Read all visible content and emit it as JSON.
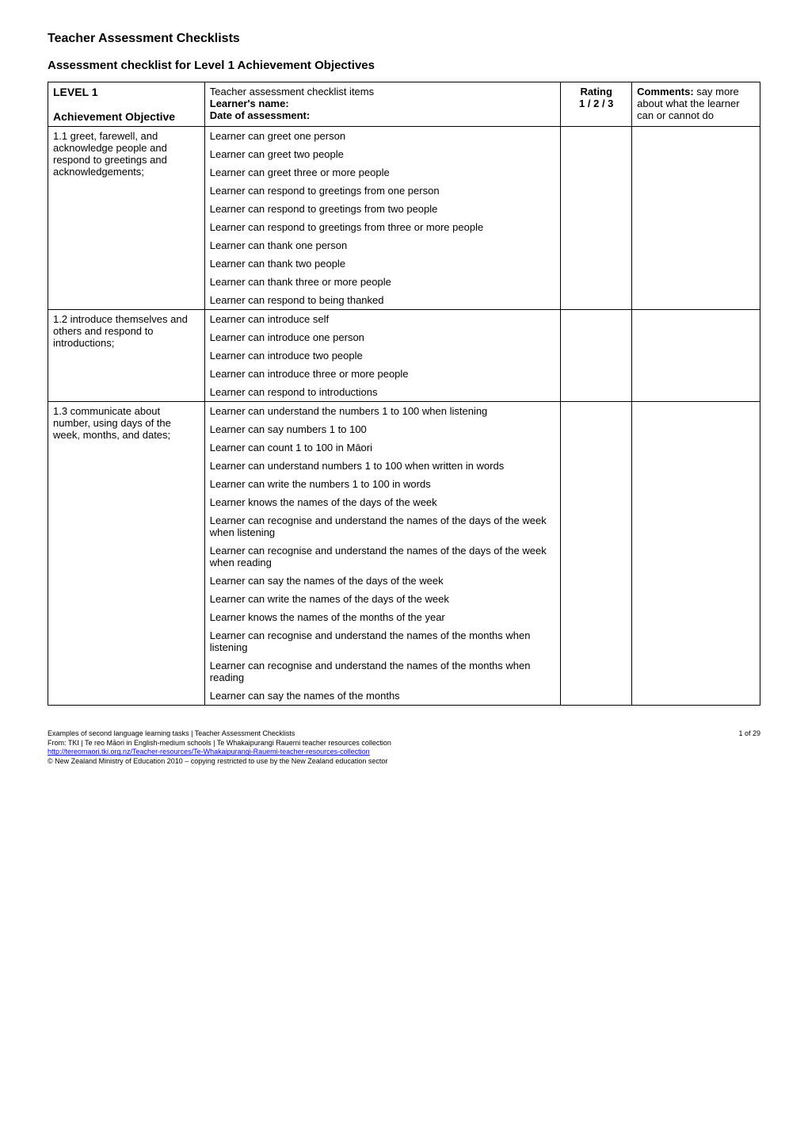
{
  "page_title": "Teacher Assessment Checklists",
  "subtitle": "Assessment checklist for Level 1 Achievement Objectives",
  "header": {
    "level_label": "LEVEL 1",
    "achievement_label": "Achievement Objective",
    "teacher_items_label": "Teacher assessment checklist items",
    "learner_name_label": "Learner's name:",
    "date_label": "Date of assessment:",
    "rating_label": "Rating",
    "rating_scale": "1 / 2 / 3",
    "comments_label": "Comments:",
    "comments_sub1": "say more about what the learner can or cannot do"
  },
  "sections": [
    {
      "objective": "1.1 greet, farewell, and acknowledge people and respond to greetings and acknowledgements;",
      "items": [
        "Learner can greet one person",
        "Learner can greet two people",
        "Learner can greet three or more people",
        "Learner can respond to greetings from one person",
        "Learner can respond to greetings from two people",
        "Learner can respond to greetings from three or more people",
        "Learner can thank one person",
        "Learner can thank two people",
        "Learner can thank three or more people",
        "Learner can respond to being thanked"
      ]
    },
    {
      "objective": "1.2 introduce themselves and others and respond to introductions;",
      "items": [
        "Learner can introduce self",
        "Learner can introduce one person",
        "Learner can introduce two people",
        "Learner can introduce three or more people",
        "Learner can respond to introductions"
      ]
    },
    {
      "objective": "1.3 communicate about number, using days of the week, months, and dates;",
      "items": [
        "Learner can understand the numbers 1 to 100 when listening",
        "Learner can say numbers 1 to 100",
        "Learner can count 1 to 100 in Māori",
        "Learner can understand numbers 1 to 100 when written in words",
        "Learner can write the numbers 1 to 100 in words",
        "Learner knows the names of the days of the week",
        "Learner can recognise and understand the names of the days of the week when listening",
        "Learner can recognise and understand the names of the days of the week when reading",
        "Learner can say the names of the days of the week",
        "Learner can write the names of the days of the week",
        "Learner knows the names of the months of the year",
        "Learner can recognise and understand the names of the months when listening",
        "Learner can recognise and understand the names of the months when reading",
        "Learner can say the names of the months"
      ]
    }
  ],
  "footer": {
    "line1": "Examples of second language learning tasks | Teacher Assessment Checklists",
    "line2": "From: TKI | Te reo Māori in English-medium schools | Te Whakaipurangi Rauemi teacher resources collection",
    "link_text": "http://tereomaori.tki.org.nz/Teacher-resources/Te-Whakaipurangi-Rauemi-teacher-resources-collection",
    "line4": "© New Zealand Ministry of Education 2010 – copying restricted to use by the New Zealand education sector",
    "page_num": "1 of 29"
  }
}
